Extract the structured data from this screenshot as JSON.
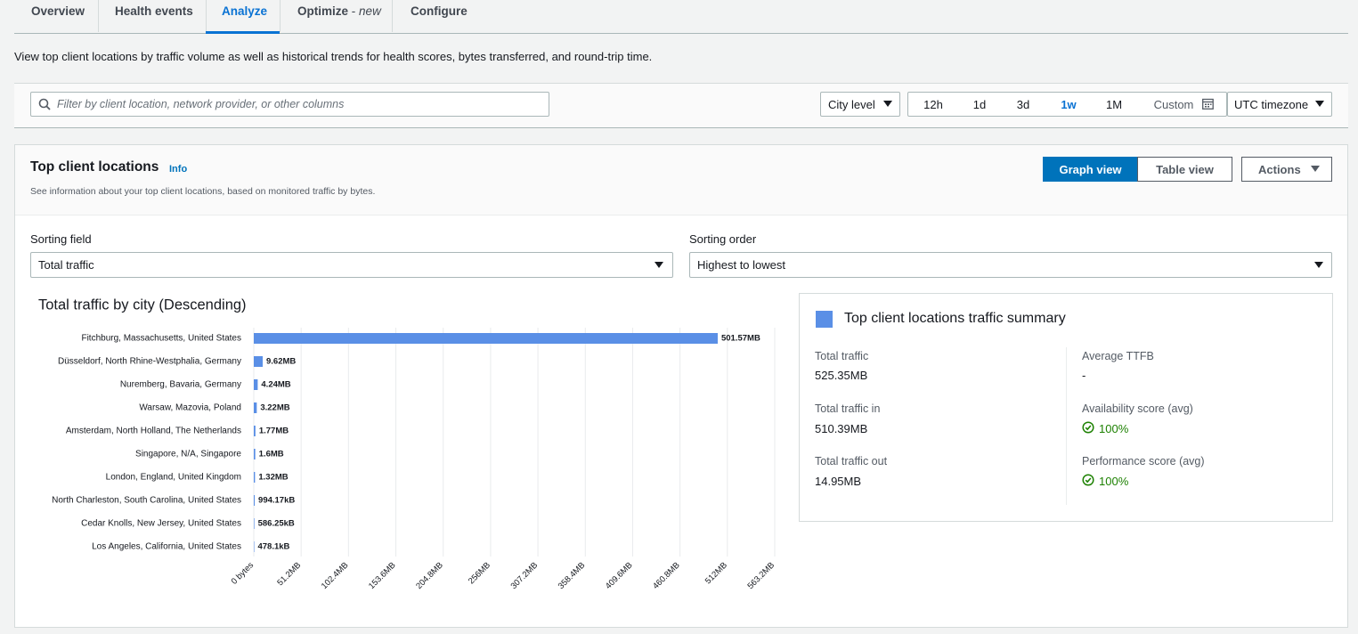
{
  "tabs": {
    "items": [
      {
        "label": "Overview"
      },
      {
        "label": "Health events"
      },
      {
        "label": "Analyze"
      },
      {
        "label": "Optimize",
        "separator": "-",
        "badge": "new"
      },
      {
        "label": "Configure"
      }
    ],
    "active": 2
  },
  "description": "View top client locations by traffic volume as well as historical trends for health scores, bytes transferred, and round-trip time.",
  "filter": {
    "placeholder": "Filter by client location, network provider, or other columns",
    "level": "City level",
    "ranges": [
      "12h",
      "1d",
      "3d",
      "1w",
      "1M",
      "Custom"
    ],
    "active_range": 3,
    "timezone": "UTC timezone"
  },
  "panel": {
    "title": "Top client locations",
    "info": "Info",
    "subtitle": "See information about your top client locations, based on monitored traffic by bytes.",
    "views": [
      "Graph view",
      "Table view"
    ],
    "active_view": 0,
    "actions": "Actions"
  },
  "sorting": {
    "field_label": "Sorting field",
    "field": "Total traffic",
    "order_label": "Sorting order",
    "order": "Highest to lowest"
  },
  "chart_data": {
    "type": "bar",
    "orientation": "horizontal",
    "title": "Total traffic by city (Descending)",
    "categories": [
      "Fitchburg, Massachusetts, United States",
      "Düsseldorf, North Rhine-Westphalia, Germany",
      "Nuremberg, Bavaria, Germany",
      "Warsaw, Mazovia, Poland",
      "Amsterdam, North Holland, The Netherlands",
      "Singapore, N/A, Singapore",
      "London, England, United Kingdom",
      "North Charleston, South Carolina, United States",
      "Cedar Knolls, New Jersey, United States",
      "Los Angeles, California, United States"
    ],
    "values": [
      501.57,
      9.62,
      4.24,
      3.22,
      1.77,
      1.6,
      1.32,
      0.99417,
      0.58625,
      0.4781
    ],
    "value_labels": [
      "501.57MB",
      "9.62MB",
      "4.24MB",
      "3.22MB",
      "1.77MB",
      "1.6MB",
      "1.32MB",
      "994.17kB",
      "586.25kB",
      "478.1kB"
    ],
    "color": "#5a8fe6",
    "xlim": [
      0,
      563.2
    ],
    "xticks": [
      {
        "value": 0,
        "label": "0 bytes"
      },
      {
        "value": 51.2,
        "label": "51.2MB"
      },
      {
        "value": 102.4,
        "label": "102.4MB"
      },
      {
        "value": 153.6,
        "label": "153.6MB"
      },
      {
        "value": 204.8,
        "label": "204.8MB"
      },
      {
        "value": 256,
        "label": "256MB"
      },
      {
        "value": 307.2,
        "label": "307.2MB"
      },
      {
        "value": 358.4,
        "label": "358.4MB"
      },
      {
        "value": 409.6,
        "label": "409.6MB"
      },
      {
        "value": 460.8,
        "label": "460.8MB"
      },
      {
        "value": 512,
        "label": "512MB"
      },
      {
        "value": 563.2,
        "label": "563.2MB"
      }
    ],
    "grid": true
  },
  "summary": {
    "title": "Top client locations traffic summary",
    "items": [
      {
        "label": "Total traffic",
        "value": "525.35MB"
      },
      {
        "label": "Total traffic in",
        "value": "510.39MB"
      },
      {
        "label": "Total traffic out",
        "value": "14.95MB"
      },
      {
        "label": "Average TTFB",
        "value": "-"
      },
      {
        "label": "Availability score (avg)",
        "value": "100%"
      },
      {
        "label": "Performance score (avg)",
        "value": "100%"
      }
    ]
  }
}
